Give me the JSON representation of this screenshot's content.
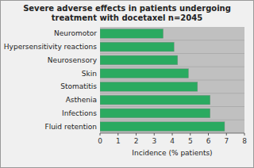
{
  "chart_data": {
    "type": "bar",
    "orientation": "horizontal",
    "title": "Severe adverse effects in patients undergoing\ntreatment with docetaxel n=2045",
    "categories": [
      "Fluid retention",
      "Infections",
      "Asthenia",
      "Stomatitis",
      "Skin",
      "Neurosensory",
      "Hypersensitivity reactions",
      "Neuromotor"
    ],
    "values": [
      6.9,
      6.1,
      6.1,
      5.4,
      4.9,
      4.3,
      4.1,
      3.5
    ],
    "color": "#2aaa60",
    "x_label": "Incidence (% patients)",
    "xlim": [
      0,
      8
    ],
    "xticks": [
      0,
      1,
      2,
      3,
      4,
      5,
      6,
      7,
      8
    ],
    "grid": false
  }
}
